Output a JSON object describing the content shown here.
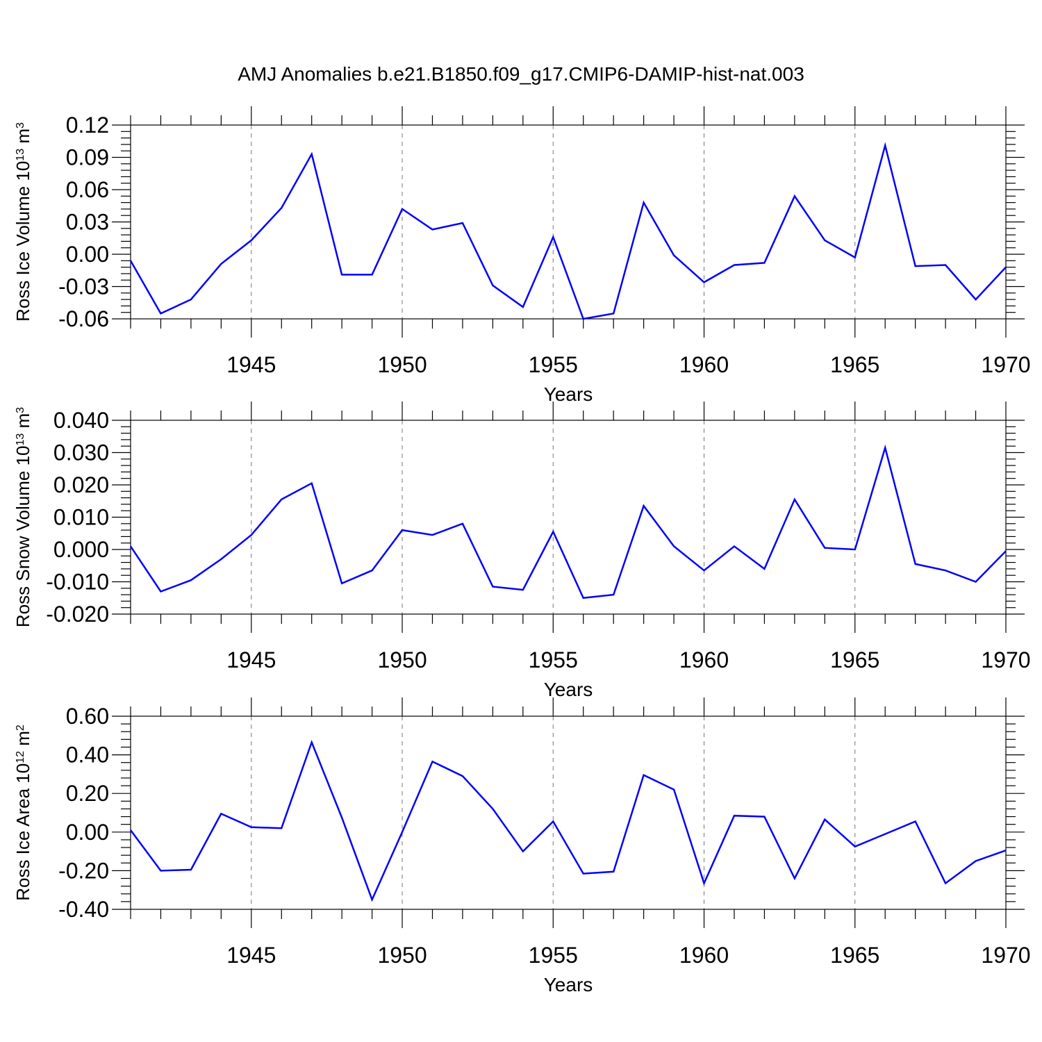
{
  "title": "AMJ Anomalies b.e21.B1850.f09_g17.CMIP6-DAMIP-hist-nat.003",
  "colors": {
    "line": "#0000ff",
    "grid": "#777777"
  },
  "chart_data": [
    {
      "type": "line",
      "x": [
        1941,
        1942,
        1943,
        1944,
        1945,
        1946,
        1947,
        1948,
        1949,
        1950,
        1951,
        1952,
        1953,
        1954,
        1955,
        1956,
        1957,
        1958,
        1959,
        1960,
        1961,
        1962,
        1963,
        1964,
        1965,
        1966,
        1967,
        1968,
        1969,
        1970
      ],
      "values": [
        -0.006,
        -0.055,
        -0.042,
        -0.009,
        0.013,
        0.043,
        0.093,
        -0.019,
        -0.019,
        0.042,
        0.023,
        0.029,
        -0.029,
        -0.049,
        0.016,
        -0.06,
        -0.055,
        0.048,
        -0.001,
        -0.026,
        -0.01,
        -0.008,
        0.054,
        0.013,
        -0.003,
        0.101,
        -0.011,
        -0.01,
        -0.042,
        -0.012
      ],
      "xlabel": "Years",
      "ylabel": {
        "prefix": "Ross Ice Volume 10",
        "exp": "13",
        "unit": " m",
        "unit_exp": "3"
      },
      "ylim": [
        -0.06,
        0.12
      ],
      "xlim": [
        1941,
        1970
      ],
      "yticks": [
        "-0.06",
        "-0.03",
        "0.00",
        "0.03",
        "0.06",
        "0.09",
        "0.12"
      ],
      "xticks": [
        "1945",
        "1950",
        "1955",
        "1960",
        "1965",
        "1970"
      ],
      "grid": "vertical dashed at major x ticks"
    },
    {
      "type": "line",
      "x": [
        1941,
        1942,
        1943,
        1944,
        1945,
        1946,
        1947,
        1948,
        1949,
        1950,
        1951,
        1952,
        1953,
        1954,
        1955,
        1956,
        1957,
        1958,
        1959,
        1960,
        1961,
        1962,
        1963,
        1964,
        1965,
        1966,
        1967,
        1968,
        1969,
        1970
      ],
      "values": [
        0.001,
        -0.013,
        -0.0095,
        -0.003,
        0.0045,
        0.0155,
        0.0205,
        -0.0105,
        -0.0065,
        0.006,
        0.0045,
        0.008,
        -0.0115,
        -0.0125,
        0.0055,
        -0.015,
        -0.014,
        0.0135,
        0.001,
        -0.0065,
        0.001,
        -0.006,
        0.0155,
        0.0005,
        0.0,
        0.0315,
        -0.0045,
        -0.0065,
        -0.01,
        -0.0005
      ],
      "xlabel": "Years",
      "ylabel": {
        "prefix": "Ross Snow Volume 10",
        "exp": "13",
        "unit": " m",
        "unit_exp": "3"
      },
      "ylim": [
        -0.02,
        0.04
      ],
      "xlim": [
        1941,
        1970
      ],
      "yticks": [
        "-0.020",
        "-0.010",
        "0.000",
        "0.010",
        "0.020",
        "0.030",
        "0.040"
      ],
      "xticks": [
        "1945",
        "1950",
        "1955",
        "1960",
        "1965",
        "1970"
      ],
      "grid": "vertical dashed at major x ticks"
    },
    {
      "type": "line",
      "x": [
        1941,
        1942,
        1943,
        1944,
        1945,
        1946,
        1947,
        1948,
        1949,
        1950,
        1951,
        1952,
        1953,
        1954,
        1955,
        1956,
        1957,
        1958,
        1959,
        1960,
        1961,
        1962,
        1963,
        1964,
        1965,
        1966,
        1967,
        1968,
        1969,
        1970
      ],
      "values": [
        0.01,
        -0.2,
        -0.195,
        0.095,
        0.025,
        0.02,
        0.465,
        0.075,
        -0.35,
        0.0,
        0.365,
        0.29,
        0.12,
        -0.1,
        0.055,
        -0.215,
        -0.205,
        0.295,
        0.22,
        -0.265,
        0.085,
        0.08,
        -0.24,
        0.065,
        -0.075,
        -0.01,
        0.055,
        -0.265,
        -0.15,
        -0.095
      ],
      "xlabel": "Years",
      "ylabel": {
        "prefix": "Ross Ice Area 10",
        "exp": "12",
        "unit": " m",
        "unit_exp": "2"
      },
      "ylim": [
        -0.4,
        0.6
      ],
      "xlim": [
        1941,
        1970
      ],
      "yticks": [
        "-0.40",
        "-0.20",
        "0.00",
        "0.20",
        "0.40",
        "0.60"
      ],
      "xticks": [
        "1945",
        "1950",
        "1955",
        "1960",
        "1965",
        "1970"
      ],
      "grid": "vertical dashed at major x ticks"
    }
  ]
}
